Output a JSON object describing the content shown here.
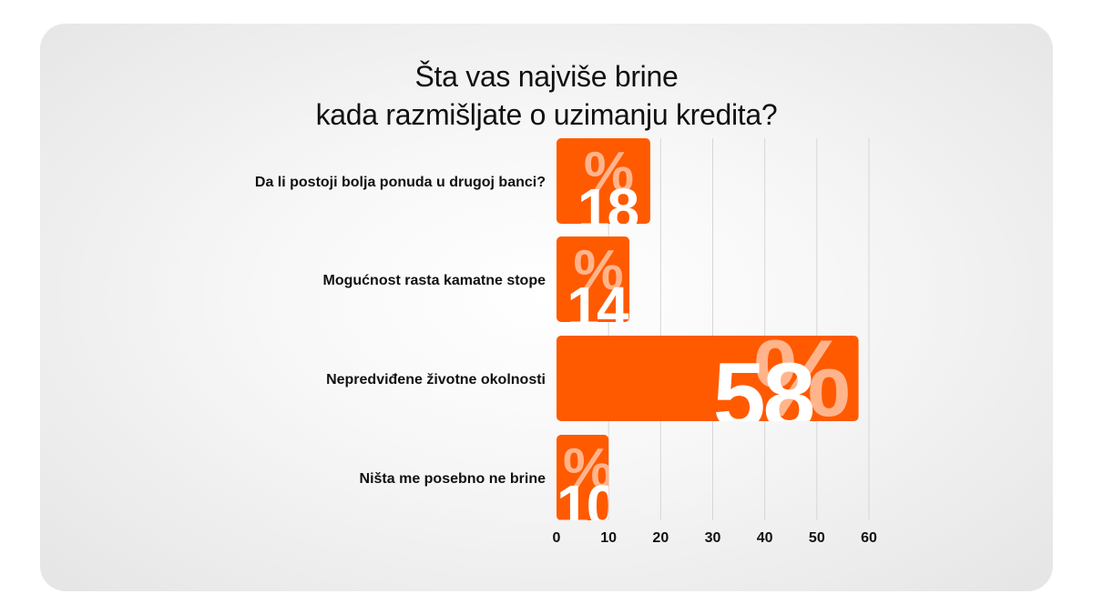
{
  "title_lines": [
    "Šta vas najviše brine",
    "kada razmišljate o uzimanju kredita?"
  ],
  "chart_data": {
    "type": "bar",
    "orientation": "horizontal",
    "categories": [
      "Da li postoji bolja ponuda u drugoj banci?",
      "Mogućnost rasta kamatne stope",
      "Nepredviđene životne okolnosti",
      "Ništa me posebno ne brine"
    ],
    "values": [
      18,
      14,
      58,
      10
    ],
    "value_suffix": "%",
    "xlim": [
      0,
      60
    ],
    "xticks": [
      0,
      10,
      20,
      30,
      40,
      50,
      60
    ],
    "grid": true,
    "bar_color": "#ff5a00"
  }
}
